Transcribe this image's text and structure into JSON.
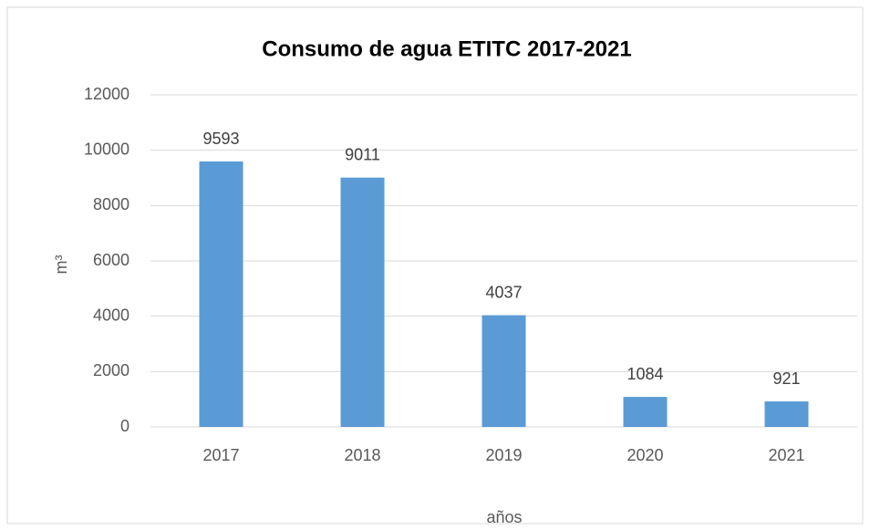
{
  "chart_data": {
    "type": "bar",
    "title": "Consumo de agua ETITC 2017-2021",
    "categories": [
      "2017",
      "2018",
      "2019",
      "2020",
      "2021"
    ],
    "values": [
      9593,
      9011,
      4037,
      1084,
      921
    ],
    "color": "#5b9bd5",
    "xlabel": "años",
    "ylabel": "m³",
    "ylim": [
      0,
      12000
    ],
    "yticks": [
      0,
      2000,
      4000,
      6000,
      8000,
      10000,
      12000
    ],
    "grid": true
  }
}
